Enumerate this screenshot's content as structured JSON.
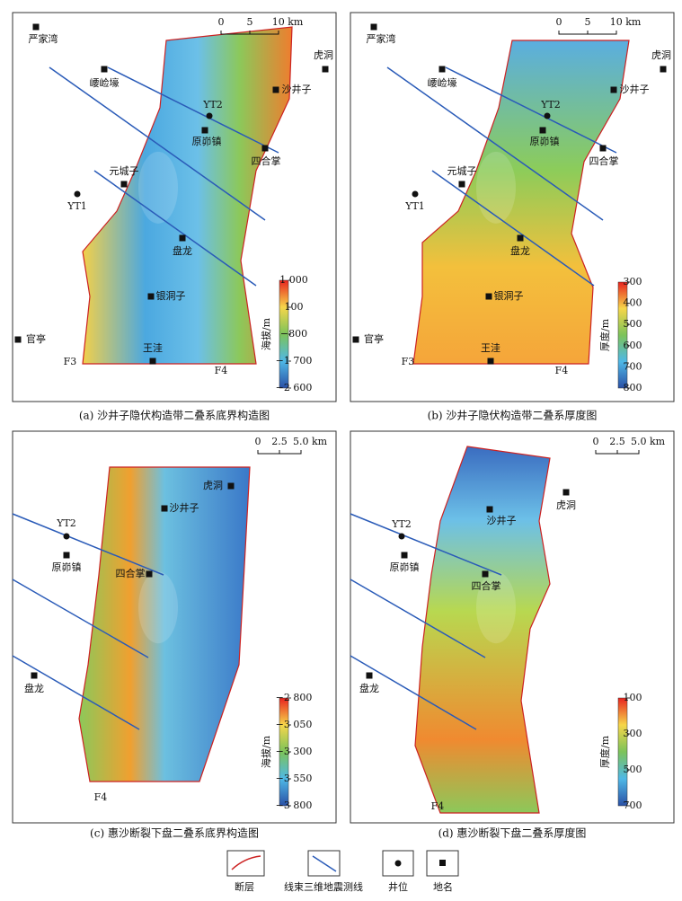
{
  "panels": [
    {
      "caption": "(a) 沙井子隐伏构造带二叠系底界构造图",
      "colorbar": {
        "title": "海拔/m",
        "ticks": [
          "1 000",
          "100",
          "−800",
          "−1 700",
          "−2 600"
        ]
      },
      "scale": [
        "0",
        "5",
        "10 km"
      ],
      "places": [
        "严家湾",
        "虎洞",
        "崾崄壕",
        "沙井子",
        "YT2",
        "原峁镇",
        "四合掌",
        "元城子",
        "YT1",
        "盘龙",
        "银洞子",
        "官亭",
        "王洼"
      ],
      "faults": [
        "F3",
        "F4"
      ]
    },
    {
      "caption": "(b) 沙井子隐伏构造带二叠系厚度图",
      "colorbar": {
        "title": "厚度/m",
        "ticks": [
          "300",
          "400",
          "500",
          "600",
          "700",
          "800"
        ]
      },
      "scale": [
        "0",
        "5",
        "10 km"
      ],
      "places": [
        "严家湾",
        "虎洞",
        "崾崄壕",
        "沙井子",
        "YT2",
        "原峁镇",
        "四合掌",
        "元城子",
        "YT1",
        "盘龙",
        "银洞子",
        "官亭",
        "王洼"
      ],
      "faults": [
        "F3",
        "F4"
      ]
    },
    {
      "caption": "(c) 惠沙断裂下盘二叠系底界构造图",
      "colorbar": {
        "title": "海拔/m",
        "ticks": [
          "−2 800",
          "−3 050",
          "−3 300",
          "−3 550",
          "−3 800"
        ]
      },
      "scale": [
        "0",
        "2.5",
        "5.0 km"
      ],
      "places": [
        "虎洞",
        "沙井子",
        "YT2",
        "原峁镇",
        "四合掌",
        "盘龙"
      ],
      "faults": [
        "F4"
      ]
    },
    {
      "caption": "(d) 惠沙断裂下盘二叠系厚度图",
      "colorbar": {
        "title": "厚度/m",
        "ticks": [
          "100",
          "300",
          "500",
          "700"
        ]
      },
      "scale": [
        "0",
        "2.5",
        "5.0 km"
      ],
      "places": [
        "虎洞",
        "沙井子",
        "YT2",
        "原峁镇",
        "四合掌",
        "盘龙"
      ],
      "faults": [
        "F4"
      ]
    }
  ],
  "legend": [
    "断层",
    "线束三维地震测线",
    "井位",
    "地名"
  ]
}
